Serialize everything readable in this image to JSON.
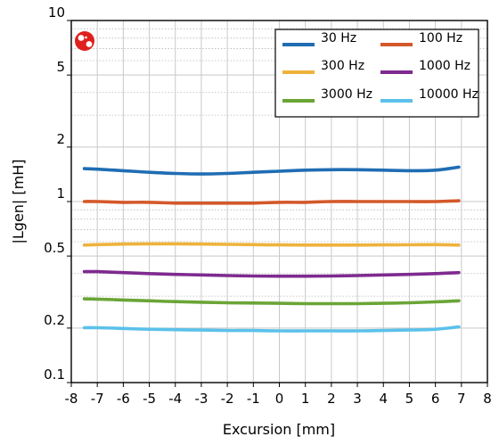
{
  "chart_data": {
    "type": "line",
    "xlabel": "Excursion [mm]",
    "ylabel": "|Lgen| [mH]",
    "xlim": [
      -8,
      8
    ],
    "ylim": [
      0.1,
      10
    ],
    "yscale": "log",
    "xticks": [
      "-8",
      "-7",
      "-6",
      "-5",
      "-4",
      "-3",
      "-2",
      "-1",
      "0",
      "1",
      "2",
      "3",
      "4",
      "5",
      "6",
      "7",
      "8"
    ],
    "yticks": [
      {
        "value": 0.1,
        "label": "0.1"
      },
      {
        "value": 0.2,
        "label": "0.2"
      },
      {
        "value": 0.5,
        "label": "0.5"
      },
      {
        "value": 1,
        "label": "1"
      },
      {
        "value": 2,
        "label": "2"
      },
      {
        "value": 5,
        "label": "5"
      },
      {
        "value": 10,
        "label": "10"
      }
    ],
    "grid": true,
    "legend_position": "top-right",
    "x": [
      -7.5,
      -7,
      -6,
      -5,
      -4,
      -3,
      -2,
      -1,
      0,
      1,
      2,
      3,
      4,
      5,
      6,
      6.9
    ],
    "series": [
      {
        "name": "30 Hz",
        "color": "#1f6db3",
        "values": [
          1.52,
          1.51,
          1.48,
          1.45,
          1.43,
          1.42,
          1.43,
          1.45,
          1.47,
          1.49,
          1.5,
          1.5,
          1.49,
          1.48,
          1.49,
          1.55
        ]
      },
      {
        "name": "100 Hz",
        "color": "#d4582a",
        "values": [
          1.0,
          1.0,
          0.99,
          0.99,
          0.98,
          0.98,
          0.98,
          0.98,
          0.99,
          0.99,
          1.0,
          1.0,
          1.0,
          1.0,
          1.0,
          1.01
        ]
      },
      {
        "name": "300 Hz",
        "color": "#eeb23c",
        "values": [
          0.575,
          0.578,
          0.582,
          0.584,
          0.584,
          0.582,
          0.58,
          0.578,
          0.576,
          0.575,
          0.575,
          0.575,
          0.576,
          0.577,
          0.578,
          0.575
        ]
      },
      {
        "name": "1000 Hz",
        "color": "#7e2a8f",
        "values": [
          0.41,
          0.41,
          0.405,
          0.4,
          0.396,
          0.393,
          0.39,
          0.388,
          0.387,
          0.387,
          0.388,
          0.39,
          0.393,
          0.396,
          0.4,
          0.405
        ]
      },
      {
        "name": "3000 Hz",
        "color": "#6aa536",
        "values": [
          0.29,
          0.289,
          0.286,
          0.283,
          0.28,
          0.278,
          0.276,
          0.275,
          0.274,
          0.273,
          0.273,
          0.273,
          0.274,
          0.276,
          0.279,
          0.283
        ]
      },
      {
        "name": "10000 Hz",
        "color": "#5bc1ea",
        "values": [
          0.201,
          0.201,
          0.199,
          0.197,
          0.196,
          0.195,
          0.194,
          0.194,
          0.193,
          0.193,
          0.193,
          0.193,
          0.194,
          0.195,
          0.197,
          0.203
        ]
      }
    ]
  },
  "logo": {
    "icon": "speaker-logo-icon",
    "color": "#e0201c"
  }
}
